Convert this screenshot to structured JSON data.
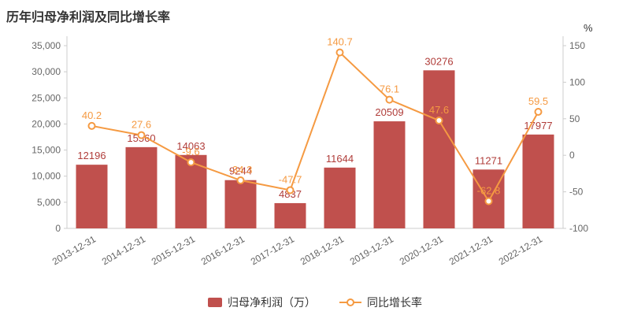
{
  "chart_data": {
    "type": "combo-bar-line",
    "title": "历年归母净利润及同比增长率",
    "categories": [
      "2013-12-31",
      "2014-12-31",
      "2015-12-31",
      "2016-12-31",
      "2017-12-31",
      "2018-12-31",
      "2019-12-31",
      "2020-12-31",
      "2021-12-31",
      "2022-12-31"
    ],
    "series": [
      {
        "name": "归母净利润（万）",
        "type": "bar",
        "color": "#c0504d",
        "label_color": "#b03d3a",
        "values": [
          12196,
          15560,
          14063,
          9244,
          4837,
          11644,
          20509,
          30276,
          11271,
          17977
        ]
      },
      {
        "name": "同比增长率",
        "type": "line",
        "color": "#f59a42",
        "label_color": "#f59a42",
        "values": [
          40.2,
          27.6,
          -9.6,
          -34.3,
          -47.7,
          140.7,
          76.1,
          47.6,
          -62.8,
          59.5
        ]
      }
    ],
    "left_axis": {
      "min": 0,
      "max": 35000,
      "step": 5000,
      "tick_labels": [
        "0",
        "5,000",
        "10,000",
        "15,000",
        "20,000",
        "25,000",
        "30,000",
        "35,000"
      ]
    },
    "right_axis": {
      "min": -100,
      "max": 150,
      "step": 50,
      "tick_labels": [
        "-100",
        "-50",
        "0",
        "50",
        "100",
        "150"
      ],
      "unit": "%"
    },
    "legend": [
      "归母净利润（万）",
      "同比增长率"
    ],
    "legend_position": "bottom",
    "grid": false,
    "axis_color": "#cccccc",
    "tick_text_color": "#666666"
  }
}
